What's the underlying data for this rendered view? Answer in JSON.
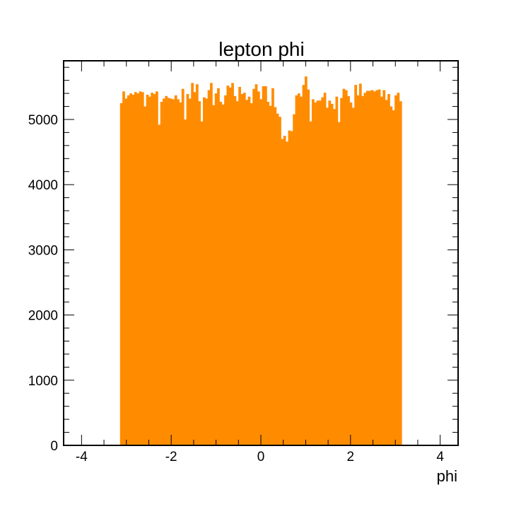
{
  "chart_data": {
    "type": "bar",
    "title": "lepton phi",
    "xlabel": "phi",
    "ylabel": "",
    "xlim": [
      -4.4,
      4.4
    ],
    "ylim": [
      0,
      5900
    ],
    "xticks": [
      -4,
      -2,
      0,
      2,
      4
    ],
    "yticks": [
      0,
      1000,
      2000,
      3000,
      4000,
      5000
    ],
    "grid": false,
    "legend": "none",
    "bar_color": "#ff8c00",
    "bin_range": [
      -3.14159,
      3.14159
    ],
    "values": [
      5250,
      5430,
      5320,
      5370,
      5400,
      5380,
      5420,
      5400,
      5430,
      5420,
      5200,
      5380,
      5350,
      5410,
      5390,
      5430,
      4920,
      5270,
      5320,
      5360,
      5330,
      5320,
      5310,
      5370,
      5310,
      5260,
      5470,
      5000,
      5390,
      5320,
      5560,
      5420,
      5540,
      5280,
      4970,
      5340,
      5320,
      5450,
      5560,
      5220,
      5400,
      5480,
      5270,
      5230,
      5370,
      5520,
      5490,
      5560,
      5360,
      5280,
      5500,
      5390,
      5410,
      5300,
      5350,
      5250,
      5470,
      5540,
      5430,
      5310,
      5510,
      5510,
      5270,
      5210,
      5480,
      5190,
      5090,
      5040,
      4700,
      4750,
      4660,
      4830,
      4820,
      5080,
      5370,
      5400,
      5350,
      5530,
      5660,
      5460,
      4970,
      5310,
      5260,
      5290,
      5290,
      5340,
      5410,
      5180,
      5290,
      5240,
      5160,
      5350,
      4960,
      5330,
      5470,
      5450,
      5360,
      5260,
      5180,
      5530,
      5370,
      5550,
      5360,
      5410,
      5440,
      5440,
      5450,
      5430,
      5450,
      5460,
      5350,
      5450,
      5300,
      5390,
      5200,
      5140,
      5370,
      5410,
      5280
    ]
  }
}
